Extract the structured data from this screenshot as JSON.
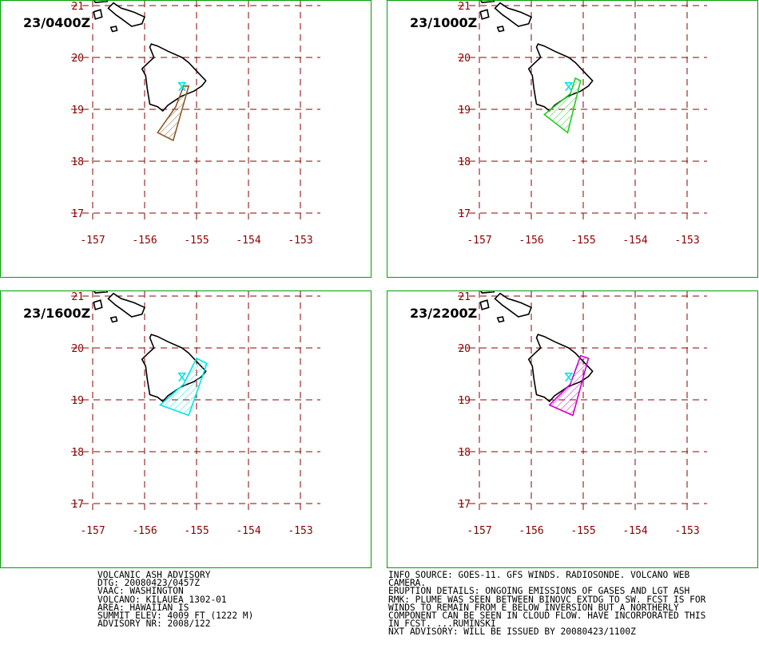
{
  "panels": [
    {
      "label": "23/0400Z",
      "color": "#8b5a2b",
      "polygon": [
        [
          -155.25,
          19.45
        ],
        [
          -155.4,
          19.05
        ],
        [
          -155.75,
          18.55
        ],
        [
          -155.45,
          18.4
        ],
        [
          -155.15,
          19.45
        ]
      ]
    },
    {
      "label": "23/1000Z",
      "color": "#22cc22",
      "polygon": [
        [
          -155.25,
          19.3
        ],
        [
          -155.75,
          18.9
        ],
        [
          -155.3,
          18.55
        ],
        [
          -155.05,
          19.55
        ],
        [
          -155.15,
          19.6
        ]
      ]
    },
    {
      "label": "23/1600Z",
      "color": "#00e5e5",
      "polygon": [
        [
          -155.25,
          19.3
        ],
        [
          -155.7,
          18.9
        ],
        [
          -155.15,
          18.7
        ],
        [
          -154.8,
          19.7
        ],
        [
          -155.0,
          19.8
        ]
      ]
    },
    {
      "label": "23/2200Z",
      "color": "#cc00cc",
      "polygon": [
        [
          -155.25,
          19.3
        ],
        [
          -155.65,
          18.9
        ],
        [
          -155.2,
          18.7
        ],
        [
          -154.9,
          19.8
        ],
        [
          -155.05,
          19.85
        ]
      ]
    }
  ],
  "map": {
    "lon_ticks": [
      "-157",
      "-156",
      "-155",
      "-154",
      "-153"
    ],
    "lat_ticks": [
      "21",
      "20",
      "19",
      "18",
      "17"
    ],
    "grid_color": "#8b0000",
    "coast_color": "#000000",
    "volcano_color": "#00e5e5"
  },
  "advisory": [
    "VOLCANIC ASH ADVISORY",
    "DTG: 20080423/0457Z",
    "VAAC: WASHINGTON",
    "VOLCANO: KILAUEA 1302-01",
    "AREA: HAWAIIAN IS",
    "SUMMIT ELEV: 4009 FT (1222 M)",
    "ADVISORY NR: 2008/122"
  ],
  "remarks": [
    "INFO SOURCE: GOES-11. GFS WINDS. RADIOSONDE. VOLCANO WEB",
    "CAMERA.",
    "ERUPTION DETAILS: ONGOING EMISSIONS OF GASES AND LGT ASH",
    "RMK: PLUME WAS SEEN BETWEEN BINOVC EXTDG TO SW. FCST IS FOR",
    "WINDS TO REMAIN FROM E BELOW INVERSION BUT A NORTHERLY",
    "COMPONENT CAN BE SEEN IN CLOUD FLOW. HAVE INCORPORATED THIS",
    "IN FCST. ...RUMINSKI",
    "NXT ADVISORY: WILL BE ISSUED BY 20080423/1100Z"
  ]
}
